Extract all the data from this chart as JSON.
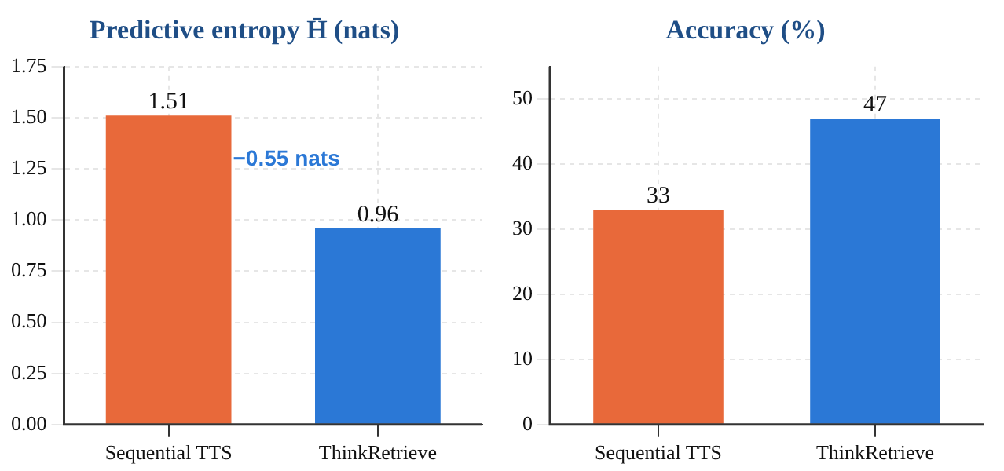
{
  "chart_data": [
    {
      "type": "bar",
      "title": "Predictive entropy H̄ (nats)",
      "categories": [
        "Sequential TTS",
        "ThinkRetrieve"
      ],
      "values": [
        1.51,
        0.96
      ],
      "colors": [
        "#e8693a",
        "#2b78d6"
      ],
      "ylim": [
        0,
        1.75
      ],
      "yticks": [
        {
          "value": 0,
          "label": "0.00"
        },
        {
          "value": 0.25,
          "label": "0.25"
        },
        {
          "value": 0.5,
          "label": "0.50"
        },
        {
          "value": 0.75,
          "label": "0.75"
        },
        {
          "value": 1,
          "label": "1.00"
        },
        {
          "value": 1.25,
          "label": "1.25"
        },
        {
          "value": 1.5,
          "label": "1.50"
        },
        {
          "value": 1.75,
          "label": "1.75"
        }
      ],
      "grid": true,
      "data_labels": true,
      "annotations": [
        "−0.55 nats"
      ]
    },
    {
      "type": "bar",
      "title": "Accuracy (%)",
      "categories": [
        "Sequential TTS",
        "ThinkRetrieve"
      ],
      "values": [
        33,
        47
      ],
      "colors": [
        "#e8693a",
        "#2b78d6"
      ],
      "ylim": [
        0,
        55
      ],
      "yticks": [
        0,
        10,
        20,
        30,
        40,
        50
      ],
      "grid": true,
      "data_labels": true
    }
  ]
}
